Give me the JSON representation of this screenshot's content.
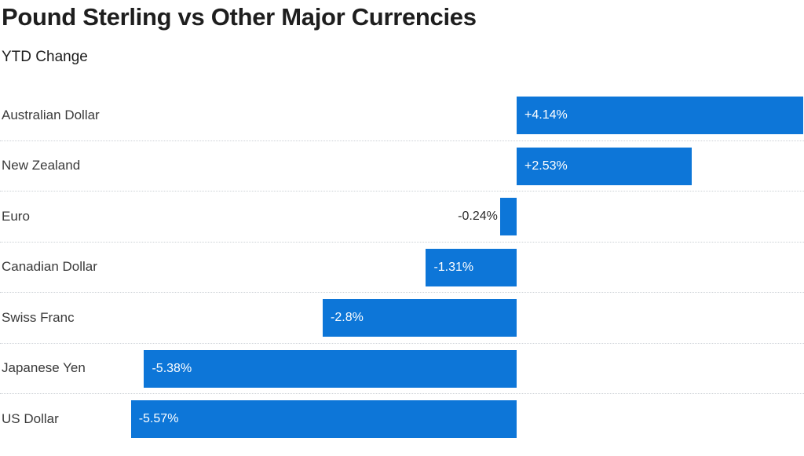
{
  "chart_data": {
    "type": "bar",
    "orientation": "horizontal",
    "title": "Pound Sterling vs Other Major Currencies",
    "subtitle": "YTD Change",
    "categories": [
      "Australian Dollar",
      "New Zealand",
      "Euro",
      "Canadian Dollar",
      "Swiss Franc",
      "Japanese Yen",
      "US Dollar"
    ],
    "values": [
      4.14,
      2.53,
      -0.24,
      -1.31,
      -2.8,
      -5.38,
      -5.57
    ],
    "value_labels": [
      "+4.14%",
      "+2.53%",
      "-0.24%",
      "-1.31%",
      "-2.8%",
      "-5.38%",
      "-5.57%"
    ],
    "unit": "%",
    "legend": "none",
    "grid": "dotted-row-separators",
    "axis_labels_visible": false
  },
  "colors": {
    "bar": "#0d76d8",
    "background": "#ffffff",
    "title_text": "#1e1e1e",
    "category_text": "#3a3a3a",
    "value_text_inside": "#ffffff",
    "value_text_outside": "#2a2a2a",
    "separator": "#ccd1d6"
  }
}
